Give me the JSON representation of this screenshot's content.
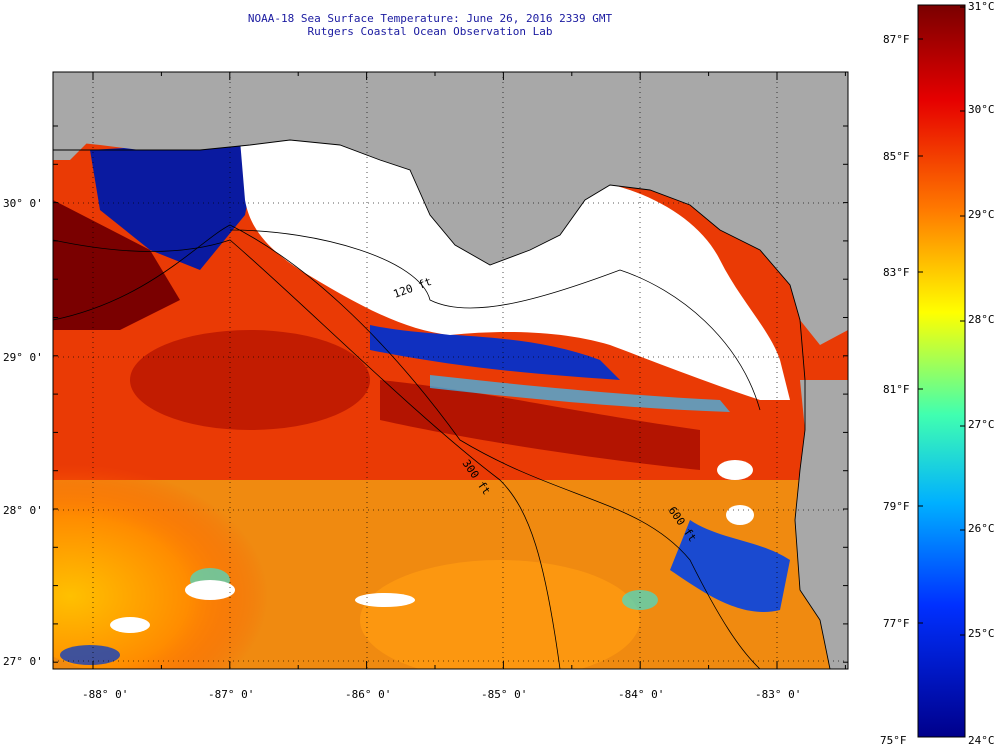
{
  "title": {
    "line1": "NOAA-18 Sea Surface Temperature:  June 26, 2016 2339 GMT",
    "line2": "Rutgers Coastal Ocean Observation Lab"
  },
  "map": {
    "lon_labels": [
      "-88° 0'",
      "-87° 0'",
      "-86° 0'",
      "-85° 0'",
      "-84° 0'",
      "-83° 0'"
    ],
    "lat_labels": [
      "30° 0'",
      "29° 0'",
      "28° 0'",
      "27° 0'"
    ],
    "isobath_labels": [
      "120 ft",
      "300 ft",
      "600 ft"
    ],
    "colors": {
      "land": "#a8a8a8",
      "cloud": "#ffffff",
      "hot": "#7a0000",
      "warm": "#d81a00",
      "mid": "#f5a000",
      "cool": "#00008b"
    }
  },
  "colorbar": {
    "celsius": [
      "31°C",
      "30°C",
      "29°C",
      "28°C",
      "27°C",
      "26°C",
      "25°C",
      "24°C"
    ],
    "fahrenheit": [
      "87°F",
      "85°F",
      "83°F",
      "81°F",
      "79°F",
      "77°F",
      "75°F"
    ]
  }
}
